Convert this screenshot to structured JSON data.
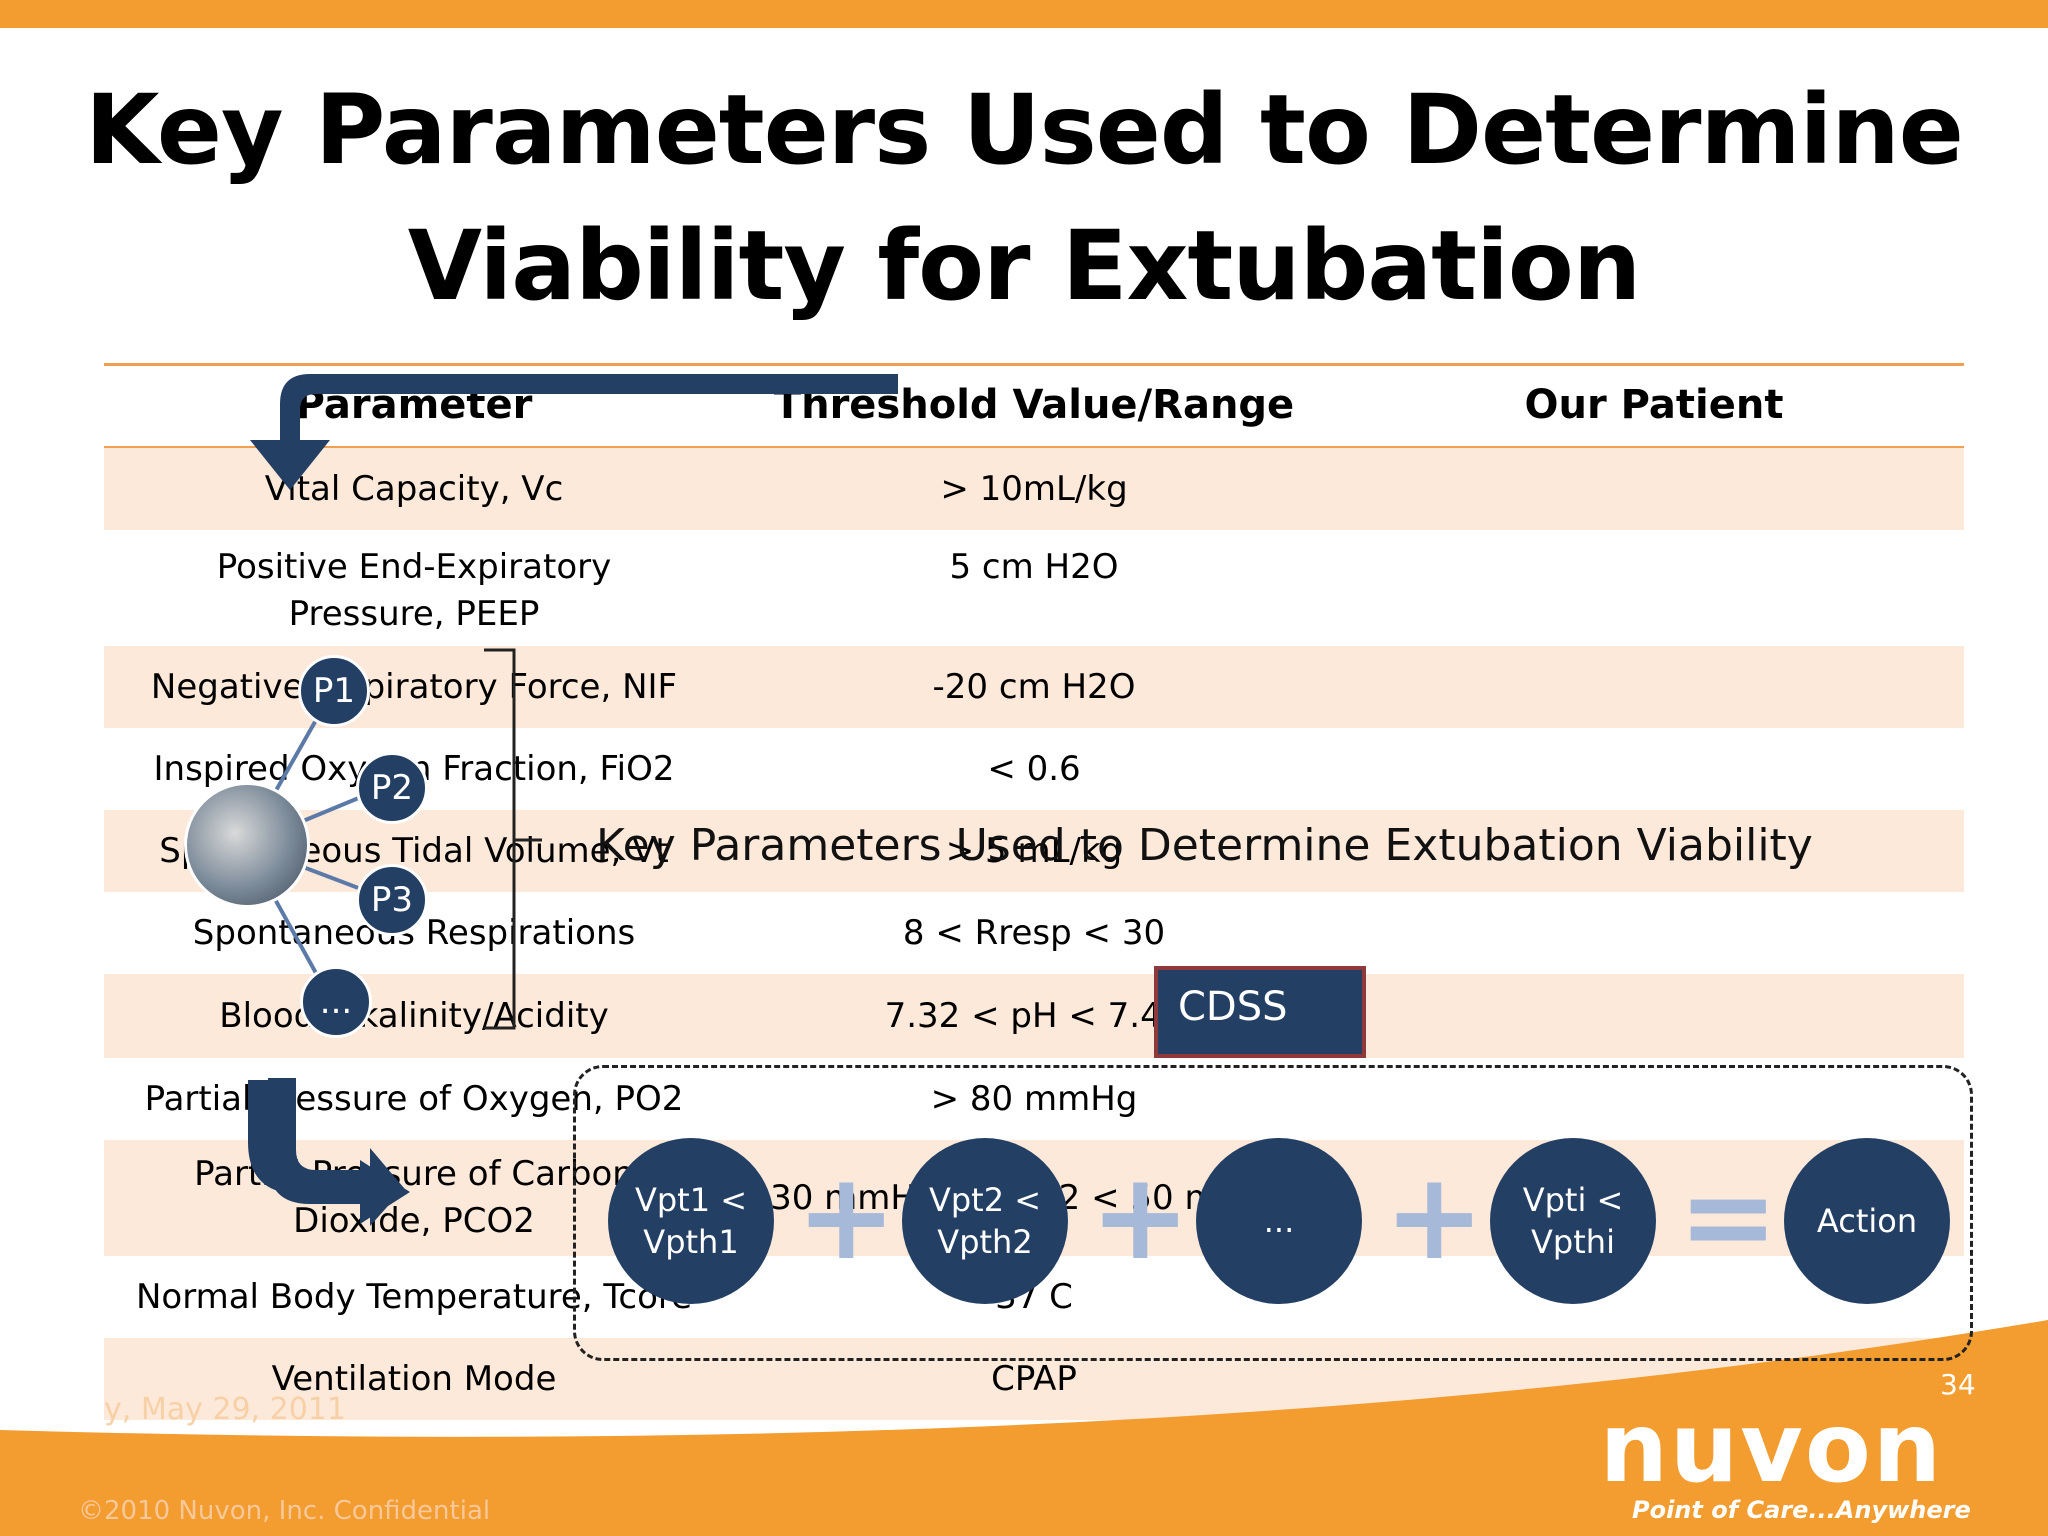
{
  "slide": {
    "title_line1": "Key Parameters Used to Determine",
    "title_line2": "Viability for Extubation",
    "overlay_title": "Key Parameters Used to Determine Extubation Viability",
    "page_number": "34",
    "date": "y, May 29, 2011",
    "copyright": "©2010 Nuvon, Inc. Confidential"
  },
  "logo": {
    "word": "nuvon",
    "tagline": "Point of Care...Anywhere"
  },
  "table": {
    "headers": [
      "Parameter",
      "Threshold Value/Range",
      "Our Patient"
    ],
    "rows": [
      {
        "param": "Vital Capacity, Vc",
        "threshold": "> 10mL/kg",
        "patient": ""
      },
      {
        "param": "Positive End-Expiratory Pressure, PEEP",
        "threshold": "5 cm H2O",
        "patient": ""
      },
      {
        "param": "Negative Inspiratory Force, NIF",
        "threshold": "-20 cm H2O",
        "patient": ""
      },
      {
        "param": "Inspired Oxygen Fraction, FiO2",
        "threshold": "< 0.6",
        "patient": ""
      },
      {
        "param": "Spontaneous Tidal Volume, Vt",
        "threshold": "> 5 mL/kg",
        "patient": ""
      },
      {
        "param": "Spontaneous Respirations",
        "threshold": "8 < Rresp < 30",
        "patient": ""
      },
      {
        "param": "Blood Alkalinity/Acidity",
        "threshold": "7.32 < pH < 7.48",
        "patient": ""
      },
      {
        "param": "Partial Pressure of Oxygen, PO2",
        "threshold": "> 80 mmHg",
        "patient": ""
      },
      {
        "param": "Partial Pressure of Carbon Dioxide, PCO2",
        "threshold": "30 mmHg < PCO2 < 50 mmHg",
        "patient": ""
      },
      {
        "param": "Normal Body Temperature, Tcore",
        "threshold": "37 C",
        "patient": ""
      },
      {
        "param": "Ventilation Mode",
        "threshold": "CPAP",
        "patient": ""
      }
    ]
  },
  "diagram": {
    "param_nodes": [
      "P1",
      "P2",
      "P3",
      "..."
    ],
    "cdss_label": "CDSS",
    "equation": [
      "Vpt1 < Vpth1",
      "Vpt2 < Vpth2",
      "...",
      "Vpti < Vpthi",
      "Action"
    ],
    "operators": [
      "+",
      "+",
      "+",
      "="
    ]
  }
}
